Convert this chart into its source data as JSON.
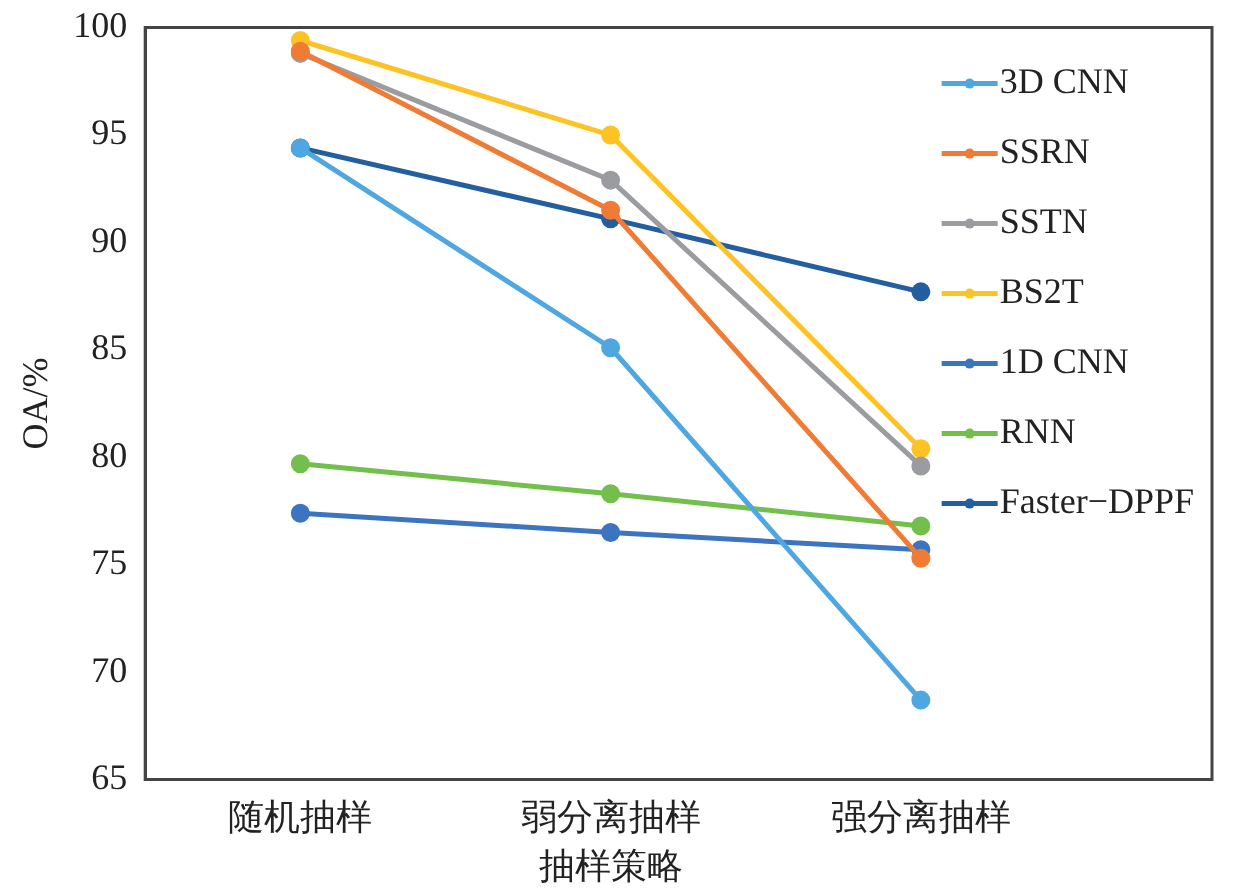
{
  "chart_data": {
    "type": "line",
    "xlabel": "抽样策略",
    "ylabel": "OA/%",
    "categories": [
      "随机抽样",
      "弱分离抽样",
      "强分离抽样"
    ],
    "ylim": [
      65,
      100
    ],
    "yticks": [
      65,
      70,
      75,
      80,
      85,
      90,
      95,
      100
    ],
    "grid": false,
    "legend": "top right",
    "marker": "circle",
    "line_style": "solid",
    "series": [
      {
        "name": "3D CNN",
        "color": "#4ea7e0",
        "values": [
          94.4,
          85.1,
          68.7
        ]
      },
      {
        "name": "SSRN",
        "color": "#ef7b34",
        "values": [
          98.9,
          91.5,
          75.3
        ]
      },
      {
        "name": "SSTN",
        "color": "#9a9c9f",
        "values": [
          98.8,
          92.9,
          79.6
        ]
      },
      {
        "name": "BS2T",
        "color": "#fdc325",
        "values": [
          99.4,
          95.0,
          80.4
        ]
      },
      {
        "name": "1D CNN",
        "color": "#3d74c0",
        "values": [
          77.4,
          76.5,
          75.7
        ]
      },
      {
        "name": "RNN",
        "color": "#72bf4b",
        "values": [
          79.7,
          78.3,
          76.8
        ]
      },
      {
        "name": "Faster−DPPF",
        "color": "#225ea0",
        "values": [
          94.4,
          91.1,
          87.7
        ]
      }
    ]
  }
}
